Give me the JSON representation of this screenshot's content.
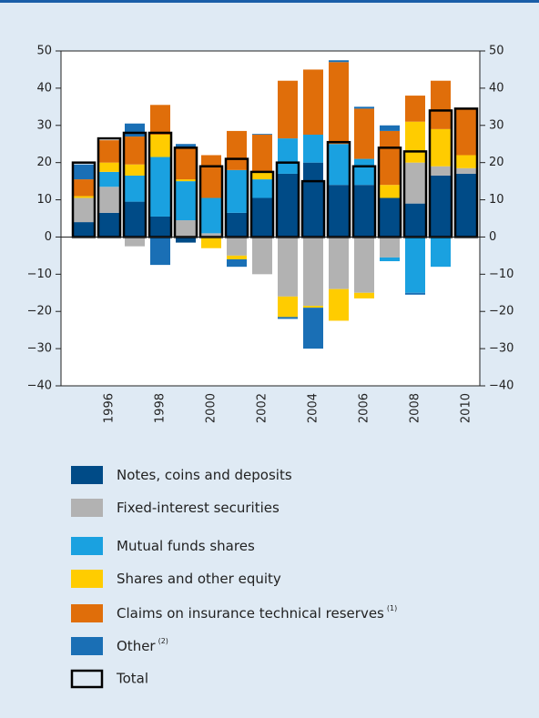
{
  "chart_data": {
    "type": "stacked-bar",
    "categories": [
      null,
      "1996",
      null,
      "1998",
      null,
      "2000",
      null,
      "2002",
      null,
      "2004",
      null,
      "2006",
      null,
      "2008",
      null,
      "2010"
    ],
    "series": [
      {
        "name": "Notes, coins and deposits",
        "color": "#004b87",
        "values": [
          4,
          6.5,
          9.5,
          5.5,
          -1.5,
          0,
          6.5,
          10.5,
          17,
          20,
          14,
          14,
          10.5,
          9,
          16.5,
          17
        ]
      },
      {
        "name": "Fixed-interest securities",
        "color": "#b2b2b2",
        "values": [
          6.5,
          7,
          -2.5,
          0,
          4.5,
          1,
          -5,
          -10,
          -16,
          -18.5,
          -14,
          -15,
          -5.5,
          11,
          2.5,
          1.5
        ]
      },
      {
        "name": "Mutual funds shares",
        "color": "#1aa1e0",
        "values": [
          0,
          4,
          7,
          16,
          10.5,
          9.5,
          11.5,
          5,
          9.5,
          7.5,
          11,
          7,
          -1,
          -15,
          -8,
          0
        ]
      },
      {
        "name": "Shares and other equity",
        "color": "#ffcc00",
        "values": [
          0.5,
          2.5,
          3,
          6,
          0.5,
          -3,
          -1,
          2,
          -5.5,
          -0.5,
          -8.5,
          -1.5,
          3.5,
          11,
          10,
          3.5
        ]
      },
      {
        "name": "Claims on insurance technical reserves",
        "note": "(1)",
        "color": "#e06e0a",
        "values": [
          4.5,
          6,
          7.5,
          8,
          8.5,
          11.5,
          10.5,
          10,
          15.5,
          17.5,
          22,
          13.5,
          14.5,
          7,
          13,
          12.5
        ]
      },
      {
        "name": "Other",
        "note": "(2)",
        "color": "#1a6fb5",
        "values": [
          4,
          0,
          3.5,
          -7.5,
          1,
          0,
          -2,
          0.2,
          -0.5,
          -11,
          0.5,
          0.5,
          1.5,
          -0.5,
          0,
          0
        ]
      }
    ],
    "total": {
      "name": "Total",
      "color": "#000000",
      "values": [
        20,
        26.5,
        28,
        28,
        24,
        19,
        21,
        17.5,
        20,
        15,
        25.5,
        19,
        24,
        23,
        34,
        34.5
      ]
    },
    "ylim": [
      -40,
      50
    ],
    "yticks": [
      {
        "value": -40,
        "label": "−40"
      },
      {
        "value": -30,
        "label": "−30"
      },
      {
        "value": -20,
        "label": "−20"
      },
      {
        "value": -10,
        "label": "−10"
      },
      0,
      10,
      20,
      30,
      40,
      50
    ],
    "y2lim": [
      -40,
      50
    ],
    "y2ticks": [
      {
        "value": -40,
        "label": "−40"
      },
      {
        "value": -30,
        "label": "−30"
      },
      {
        "value": -20,
        "label": "−20"
      },
      {
        "value": -10,
        "label": "−10"
      },
      0,
      10,
      20,
      30,
      40,
      50
    ]
  }
}
